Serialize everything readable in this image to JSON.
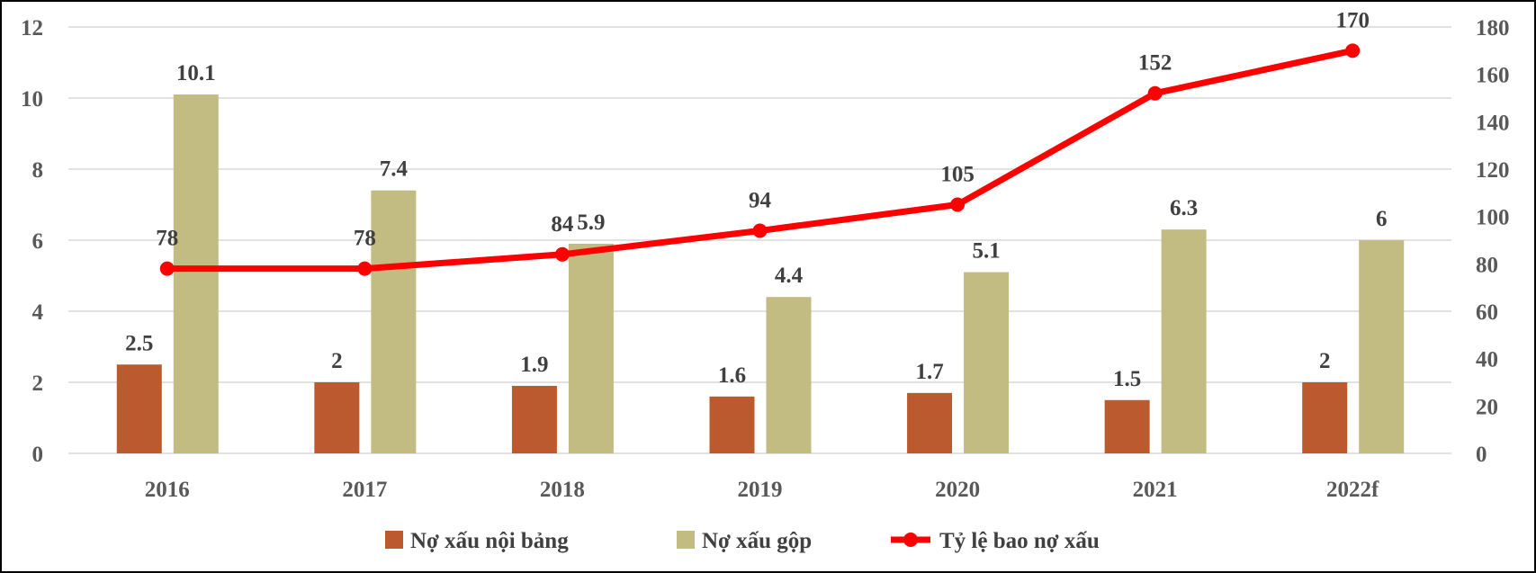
{
  "chart_data": {
    "type": "bar",
    "categories": [
      "2016",
      "2017",
      "2018",
      "2019",
      "2020",
      "2021",
      "2022f"
    ],
    "series": [
      {
        "name": "Nợ xấu nội bảng",
        "type": "bar",
        "axis": "left",
        "color": "#BA5A2E",
        "values": [
          2.5,
          2,
          1.9,
          1.6,
          1.7,
          1.5,
          2
        ]
      },
      {
        "name": "Nợ xấu gộp",
        "type": "bar",
        "axis": "left",
        "color": "#C2BC82",
        "values": [
          10.1,
          7.4,
          5.9,
          4.4,
          5.1,
          6.3,
          6
        ]
      },
      {
        "name": "Tỷ lệ bao nợ xấu",
        "type": "line",
        "axis": "right",
        "color": "#FF0000",
        "values": [
          78,
          78,
          84,
          94,
          105,
          152,
          170
        ]
      }
    ],
    "y_left": {
      "min": 0,
      "max": 12,
      "ticks": [
        "0",
        "2",
        "4",
        "6",
        "8",
        "10",
        "12"
      ]
    },
    "y_right": {
      "min": 0,
      "max": 180,
      "ticks": [
        "0",
        "20",
        "40",
        "60",
        "80",
        "100",
        "120",
        "140",
        "160",
        "180"
      ]
    },
    "grid": true,
    "legend": "bottom",
    "title": "",
    "xlabel": "",
    "ylabel": ""
  }
}
